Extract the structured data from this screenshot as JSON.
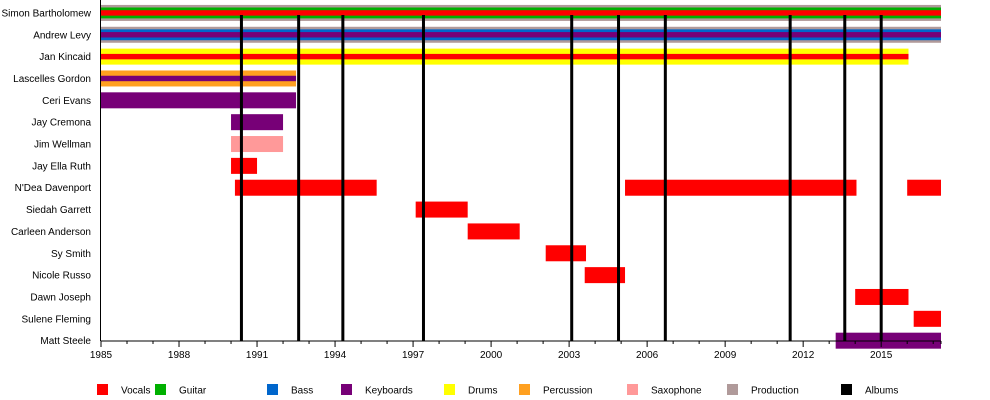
{
  "chart_data": {
    "type": "timeline",
    "title": "",
    "xlabel": "",
    "ylabel": "",
    "xlim": [
      1985,
      2017.3
    ],
    "xticks": [
      1985,
      1988,
      1991,
      1994,
      1997,
      2000,
      2003,
      2006,
      2009,
      2012,
      2015
    ],
    "minor_tick_step": 1,
    "roles": {
      "vocals": {
        "label": "Vocals",
        "color": "#ff0000"
      },
      "guitar": {
        "label": "Guitar",
        "color": "#00b000"
      },
      "bass": {
        "label": "Bass",
        "color": "#0066cc"
      },
      "keyboards": {
        "label": "Keyboards",
        "color": "#770077"
      },
      "drums": {
        "label": "Drums",
        "color": "#ffff00"
      },
      "percussion": {
        "label": "Percussion",
        "color": "#ffa020"
      },
      "saxophone": {
        "label": "Saxophone",
        "color": "#ff9999"
      },
      "production": {
        "label": "Production",
        "color": "#b09a9a"
      },
      "albums": {
        "label": "Albums",
        "color": "#000000"
      }
    },
    "legend_order": [
      "vocals",
      "guitar",
      "bass",
      "keyboards",
      "drums",
      "percussion",
      "saxophone",
      "production",
      "albums"
    ],
    "legend_position": "bottom",
    "albums": [
      1990.4,
      1992.6,
      1994.3,
      1997.4,
      2003.1,
      2004.9,
      2006.7,
      2011.5,
      2013.6,
      2015.0
    ],
    "members": [
      {
        "name": "Simon Bartholomew",
        "layers": [
          "production",
          "guitar",
          "vocals"
        ],
        "periods": [
          [
            1985,
            2017.3
          ]
        ]
      },
      {
        "name": "Andrew Levy",
        "layers": [
          "production",
          "bass",
          "keyboards"
        ],
        "periods": [
          [
            1985,
            2017.3
          ]
        ]
      },
      {
        "name": "Jan Kincaid",
        "layers": [
          "drums",
          "vocals"
        ],
        "periods": [
          [
            1985,
            2016.05
          ]
        ]
      },
      {
        "name": "Lascelles Gordon",
        "layers": [
          "percussion",
          "keyboards"
        ],
        "periods": [
          [
            1985,
            1992.5
          ]
        ]
      },
      {
        "name": "Ceri Evans",
        "layers": [
          "keyboards"
        ],
        "periods": [
          [
            1985,
            1992.5
          ]
        ]
      },
      {
        "name": "Jay Cremona",
        "layers": [
          "keyboards"
        ],
        "periods": [
          [
            1990.0,
            1992.0
          ]
        ]
      },
      {
        "name": "Jim Wellman",
        "layers": [
          "saxophone"
        ],
        "periods": [
          [
            1990.0,
            1992.0
          ]
        ]
      },
      {
        "name": "Jay Ella Ruth",
        "layers": [
          "vocals"
        ],
        "periods": [
          [
            1990.0,
            1991.0
          ]
        ]
      },
      {
        "name": "N'Dea Davenport",
        "layers": [
          "vocals"
        ],
        "periods": [
          [
            1990.15,
            1995.6
          ],
          [
            2005.15,
            2014.05
          ],
          [
            2016.0,
            2017.3
          ]
        ]
      },
      {
        "name": "Siedah Garrett",
        "layers": [
          "vocals"
        ],
        "periods": [
          [
            1997.1,
            1999.1
          ]
        ]
      },
      {
        "name": "Carleen Anderson",
        "layers": [
          "vocals"
        ],
        "periods": [
          [
            1999.1,
            2001.1
          ]
        ]
      },
      {
        "name": "Sy Smith",
        "layers": [
          "vocals"
        ],
        "periods": [
          [
            2002.1,
            2003.65
          ]
        ]
      },
      {
        "name": "Nicole Russo",
        "layers": [
          "vocals"
        ],
        "periods": [
          [
            2003.6,
            2005.15
          ]
        ]
      },
      {
        "name": "Dawn Joseph",
        "layers": [
          "vocals"
        ],
        "periods": [
          [
            2014.0,
            2016.05
          ]
        ]
      },
      {
        "name": "Sulene Fleming",
        "layers": [
          "vocals"
        ],
        "periods": [
          [
            2016.25,
            2017.3
          ]
        ]
      },
      {
        "name": "Matt Steele",
        "layers": [
          "keyboards"
        ],
        "periods": [
          [
            2013.25,
            2017.3
          ]
        ]
      }
    ]
  }
}
